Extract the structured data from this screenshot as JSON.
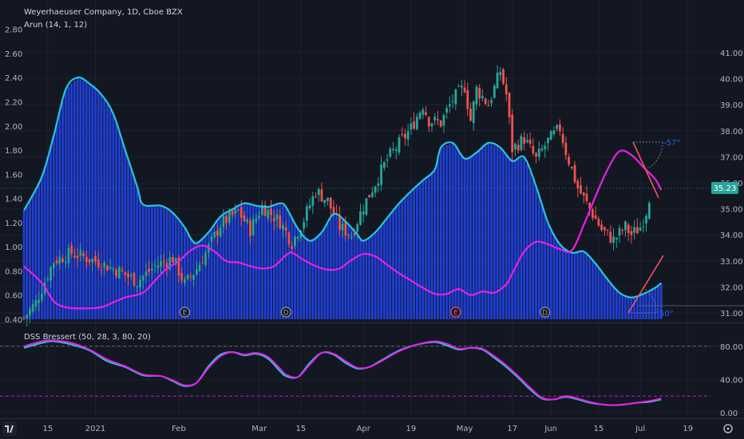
{
  "header": {
    "title": "Weyerhaeuser Company, 1D, Cboe BZX",
    "indicator_label": "Arun (14, 1, 12)"
  },
  "dss": {
    "label": "DSS Bressert (50, 28, 3, 80, 20)"
  },
  "price_badge": "35.23",
  "angle_labels": {
    "upper": "-57°",
    "lower": "50°"
  },
  "event_markers": [
    {
      "label": "E",
      "color": "#8a9bb0",
      "x_index": 54
    },
    {
      "label": "D",
      "color": "#8a9bb0",
      "x_index": 88
    },
    {
      "label": "E",
      "color": "#f7525f",
      "x_index": 145
    },
    {
      "label": "D",
      "color": "#8a9bb0",
      "x_index": 175
    }
  ],
  "colors": {
    "background": "#131722",
    "up": "#26a69a",
    "down": "#ef5350",
    "histogram": "#1f3fd6",
    "aroon_cyan": "#26c6da",
    "aroon_magenta": "#e91ee6",
    "dss_blue": "#2962ff",
    "trend_line": "#f7525f",
    "badge": "#26a69a"
  },
  "chart_data": [
    {
      "type": "candlestick",
      "title": "Weyerhaeuser Company, 1D, Cboe BZX",
      "right_axis_ticks": [
        "31.00",
        "32.00",
        "33.00",
        "34.00",
        "35.00",
        "36.00",
        "37.00",
        "38.00",
        "39.00",
        "40.00",
        "41.00"
      ],
      "ylim": [
        30.7,
        41.95
      ],
      "x_ticks": [
        "15",
        "2021",
        "Feb",
        "Mar",
        "15",
        "Apr",
        "19",
        "May",
        "17",
        "Jun",
        "15",
        "Jul",
        "19"
      ],
      "candle_count": 211,
      "price_path": [
        [
          0,
          30.8
        ],
        [
          4,
          31.4
        ],
        [
          10,
          33.0
        ],
        [
          16,
          33.3
        ],
        [
          24,
          33.0
        ],
        [
          32,
          32.6
        ],
        [
          38,
          32.2
        ],
        [
          44,
          32.8
        ],
        [
          50,
          33.1
        ],
        [
          54,
          32.1
        ],
        [
          58,
          32.7
        ],
        [
          62,
          33.5
        ],
        [
          66,
          34.4
        ],
        [
          72,
          34.9
        ],
        [
          76,
          34.2
        ],
        [
          80,
          35.1
        ],
        [
          86,
          34.5
        ],
        [
          90,
          33.7
        ],
        [
          94,
          34.6
        ],
        [
          98,
          35.7
        ],
        [
          102,
          35.3
        ],
        [
          106,
          34.3
        ],
        [
          110,
          34.0
        ],
        [
          114,
          35.1
        ],
        [
          118,
          36.0
        ],
        [
          122,
          36.9
        ],
        [
          126,
          37.5
        ],
        [
          130,
          38.1
        ],
        [
          134,
          39.0
        ],
        [
          136,
          38.4
        ],
        [
          140,
          38.3
        ],
        [
          144,
          39.2
        ],
        [
          148,
          39.7
        ],
        [
          150,
          38.4
        ],
        [
          152,
          39.6
        ],
        [
          156,
          39.0
        ],
        [
          160,
          40.3
        ],
        [
          162,
          39.4
        ],
        [
          164,
          37.3
        ],
        [
          168,
          37.7
        ],
        [
          172,
          36.9
        ],
        [
          176,
          37.6
        ],
        [
          180,
          38.1
        ],
        [
          182,
          37.2
        ],
        [
          186,
          35.8
        ],
        [
          190,
          35.0
        ],
        [
          194,
          34.2
        ],
        [
          198,
          33.8
        ],
        [
          202,
          34.3
        ],
        [
          204,
          34.0
        ],
        [
          207,
          34.3
        ],
        [
          209,
          34.9
        ],
        [
          210,
          35.23
        ]
      ]
    },
    {
      "type": "line",
      "title": "Arun (14, 1, 12)",
      "left_axis_ticks": [
        "0.40",
        "0.60",
        "0.80",
        "1.00",
        "1.20",
        "1.40",
        "1.60",
        "1.80",
        "2.00",
        "2.20",
        "2.40",
        "2.60",
        "2.80"
      ],
      "ylim": [
        0.4,
        2.8
      ],
      "series": [
        {
          "color": "#26c6da",
          "histogram": true,
          "points": [
            [
              0,
              1.3
            ],
            [
              6,
              1.58
            ],
            [
              10,
              1.92
            ],
            [
              14,
              2.3
            ],
            [
              18,
              2.4
            ],
            [
              22,
              2.35
            ],
            [
              26,
              2.26
            ],
            [
              30,
              2.1
            ],
            [
              34,
              1.8
            ],
            [
              38,
              1.5
            ],
            [
              40,
              1.35
            ],
            [
              46,
              1.34
            ],
            [
              50,
              1.28
            ],
            [
              54,
              1.16
            ],
            [
              56,
              1.07
            ],
            [
              58,
              1.03
            ],
            [
              62,
              1.12
            ],
            [
              66,
              1.25
            ],
            [
              70,
              1.31
            ],
            [
              74,
              1.36
            ],
            [
              78,
              1.34
            ],
            [
              82,
              1.33
            ],
            [
              86,
              1.36
            ],
            [
              88,
              1.33
            ],
            [
              92,
              1.15
            ],
            [
              96,
              1.05
            ],
            [
              100,
              1.12
            ],
            [
              104,
              1.27
            ],
            [
              108,
              1.21
            ],
            [
              112,
              1.1
            ],
            [
              114,
              1.05
            ],
            [
              118,
              1.12
            ],
            [
              122,
              1.24
            ],
            [
              126,
              1.36
            ],
            [
              130,
              1.46
            ],
            [
              134,
              1.55
            ],
            [
              138,
              1.64
            ],
            [
              140,
              1.82
            ],
            [
              144,
              1.86
            ],
            [
              148,
              1.73
            ],
            [
              152,
              1.78
            ],
            [
              156,
              1.86
            ],
            [
              160,
              1.82
            ],
            [
              164,
              1.71
            ],
            [
              168,
              1.74
            ],
            [
              172,
              1.5
            ],
            [
              176,
              1.2
            ],
            [
              180,
              1.02
            ],
            [
              184,
              0.95
            ],
            [
              188,
              0.96
            ],
            [
              192,
              0.86
            ],
            [
              196,
              0.73
            ],
            [
              200,
              0.62
            ],
            [
              204,
              0.58
            ],
            [
              208,
              0.61
            ],
            [
              212,
              0.66
            ],
            [
              214,
              0.7
            ]
          ]
        },
        {
          "color": "#e91ee6",
          "points": [
            [
              0,
              0.84
            ],
            [
              6,
              0.7
            ],
            [
              10,
              0.55
            ],
            [
              14,
              0.5
            ],
            [
              20,
              0.49
            ],
            [
              26,
              0.5
            ],
            [
              30,
              0.54
            ],
            [
              34,
              0.58
            ],
            [
              40,
              0.62
            ],
            [
              44,
              0.72
            ],
            [
              48,
              0.82
            ],
            [
              52,
              0.88
            ],
            [
              56,
              0.97
            ],
            [
              60,
              1.01
            ],
            [
              64,
              0.96
            ],
            [
              68,
              0.88
            ],
            [
              72,
              0.87
            ],
            [
              76,
              0.84
            ],
            [
              80,
              0.82
            ],
            [
              84,
              0.84
            ],
            [
              88,
              0.93
            ],
            [
              90,
              0.95
            ],
            [
              94,
              0.89
            ],
            [
              98,
              0.84
            ],
            [
              102,
              0.81
            ],
            [
              106,
              0.82
            ],
            [
              110,
              0.89
            ],
            [
              114,
              0.94
            ],
            [
              118,
              0.92
            ],
            [
              122,
              0.85
            ],
            [
              126,
              0.78
            ],
            [
              130,
              0.72
            ],
            [
              134,
              0.66
            ],
            [
              138,
              0.61
            ],
            [
              142,
              0.61
            ],
            [
              146,
              0.65
            ],
            [
              150,
              0.6
            ],
            [
              154,
              0.63
            ],
            [
              158,
              0.62
            ],
            [
              162,
              0.69
            ],
            [
              164,
              0.78
            ],
            [
              168,
              0.96
            ],
            [
              172,
              1.04
            ],
            [
              176,
              1.02
            ],
            [
              180,
              0.98
            ],
            [
              184,
              0.97
            ],
            [
              188,
              1.18
            ],
            [
              192,
              1.42
            ],
            [
              196,
              1.64
            ],
            [
              200,
              1.79
            ],
            [
              204,
              1.76
            ],
            [
              208,
              1.66
            ],
            [
              212,
              1.56
            ],
            [
              214,
              1.47
            ]
          ]
        }
      ]
    },
    {
      "type": "line",
      "title": "DSS Bressert (50, 28, 3, 80, 20)",
      "right_axis_ticks": [
        "0.00",
        "40.00",
        "80.00"
      ],
      "ylim": [
        -4,
        100
      ],
      "reference_lines": [
        80,
        20
      ],
      "series": [
        {
          "color": "#26c6da",
          "points": [
            [
              0,
              78
            ],
            [
              6,
              84
            ],
            [
              10,
              86
            ],
            [
              16,
              82
            ],
            [
              22,
              75
            ],
            [
              28,
              62
            ],
            [
              34,
              55
            ],
            [
              40,
              45
            ],
            [
              46,
              44
            ],
            [
              50,
              38
            ],
            [
              54,
              32
            ],
            [
              58,
              36
            ],
            [
              62,
              56
            ],
            [
              66,
              70
            ],
            [
              70,
              73
            ],
            [
              74,
              69
            ],
            [
              78,
              71
            ],
            [
              82,
              65
            ],
            [
              86,
              50
            ],
            [
              88,
              44
            ],
            [
              92,
              43
            ],
            [
              96,
              60
            ],
            [
              100,
              72
            ],
            [
              104,
              70
            ],
            [
              108,
              60
            ],
            [
              112,
              53
            ],
            [
              116,
              55
            ],
            [
              120,
              63
            ],
            [
              126,
              75
            ],
            [
              132,
              82
            ],
            [
              138,
              85
            ],
            [
              142,
              81
            ],
            [
              146,
              76
            ],
            [
              150,
              78
            ],
            [
              154,
              76
            ],
            [
              158,
              66
            ],
            [
              162,
              55
            ],
            [
              166,
              42
            ],
            [
              170,
              28
            ],
            [
              174,
              17
            ],
            [
              178,
              16
            ],
            [
              182,
              19
            ],
            [
              186,
              16
            ],
            [
              190,
              12
            ],
            [
              194,
              10
            ],
            [
              198,
              9
            ],
            [
              202,
              10
            ],
            [
              206,
              12
            ],
            [
              210,
              13
            ],
            [
              214,
              16
            ]
          ]
        },
        {
          "color": "#e91ee6",
          "points": [
            [
              0,
              80
            ],
            [
              6,
              86
            ],
            [
              10,
              87
            ],
            [
              16,
              84
            ],
            [
              22,
              76
            ],
            [
              28,
              64
            ],
            [
              34,
              56
            ],
            [
              40,
              46
            ],
            [
              46,
              44
            ],
            [
              50,
              39
            ],
            [
              54,
              33
            ],
            [
              58,
              36
            ],
            [
              62,
              54
            ],
            [
              66,
              68
            ],
            [
              70,
              73
            ],
            [
              74,
              70
            ],
            [
              78,
              72
            ],
            [
              82,
              67
            ],
            [
              86,
              53
            ],
            [
              88,
              46
            ],
            [
              92,
              43
            ],
            [
              96,
              58
            ],
            [
              100,
              72
            ],
            [
              104,
              71
            ],
            [
              108,
              62
            ],
            [
              112,
              54
            ],
            [
              116,
              55
            ],
            [
              120,
              62
            ],
            [
              126,
              74
            ],
            [
              132,
              82
            ],
            [
              138,
              86
            ],
            [
              142,
              83
            ],
            [
              146,
              77
            ],
            [
              150,
              78
            ],
            [
              154,
              77
            ],
            [
              158,
              68
            ],
            [
              162,
              57
            ],
            [
              166,
              44
            ],
            [
              170,
              30
            ],
            [
              174,
              18
            ],
            [
              178,
              16
            ],
            [
              182,
              20
            ],
            [
              186,
              17
            ],
            [
              190,
              13
            ],
            [
              194,
              10
            ],
            [
              198,
              9
            ],
            [
              202,
              10
            ],
            [
              206,
              12
            ],
            [
              210,
              14
            ],
            [
              214,
              17
            ]
          ]
        }
      ]
    }
  ]
}
